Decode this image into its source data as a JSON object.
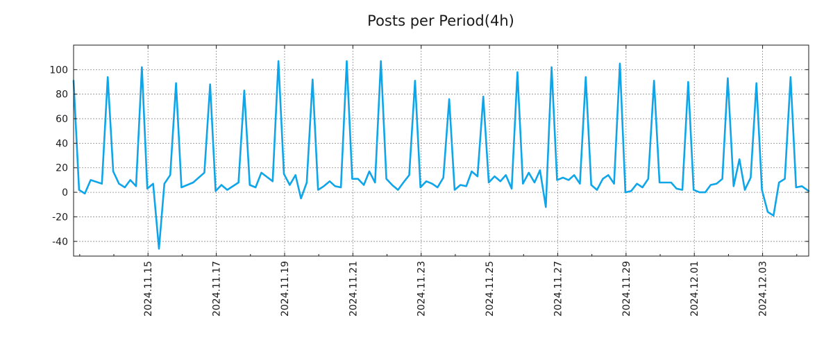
{
  "chart_data": {
    "type": "line",
    "title": "Posts per Period(4h)",
    "xlabel": "",
    "ylabel": "",
    "ylim": [
      -52,
      120
    ],
    "yticks": [
      -40,
      -20,
      0,
      20,
      40,
      60,
      80,
      100
    ],
    "xlim": [
      -0.23,
      21.3
    ],
    "x_ticks": [
      {
        "x": 1.95,
        "label": "2024.11.15"
      },
      {
        "x": 3.95,
        "label": "2024.11.17"
      },
      {
        "x": 5.95,
        "label": "2024.11.19"
      },
      {
        "x": 7.95,
        "label": "2024.11.21"
      },
      {
        "x": 9.95,
        "label": "2024.11.23"
      },
      {
        "x": 11.95,
        "label": "2024.11.25"
      },
      {
        "x": 13.95,
        "label": "2024.11.27"
      },
      {
        "x": 15.95,
        "label": "2024.11.29"
      },
      {
        "x": 17.95,
        "label": "2024.12.01"
      },
      {
        "x": 19.95,
        "label": "2024.12.03"
      }
    ],
    "grid": true,
    "color": "#0ea5e9",
    "series": [
      {
        "name": "Posts",
        "x": [
          -0.23,
          -0.07,
          0.1,
          0.27,
          0.6,
          0.77,
          0.93,
          1.1,
          1.27,
          1.43,
          1.6,
          1.77,
          1.93,
          2.1,
          2.27,
          2.43,
          2.6,
          2.77,
          2.93,
          3.27,
          3.6,
          3.77,
          3.93,
          4.1,
          4.27,
          4.6,
          4.77,
          4.93,
          5.1,
          5.27,
          5.6,
          5.77,
          5.93,
          6.1,
          6.27,
          6.43,
          6.6,
          6.77,
          6.93,
          7.1,
          7.27,
          7.43,
          7.6,
          7.77,
          7.93,
          8.1,
          8.27,
          8.43,
          8.6,
          8.77,
          8.93,
          9.1,
          9.27,
          9.43,
          9.6,
          9.77,
          9.93,
          10.1,
          10.27,
          10.43,
          10.6,
          10.77,
          10.93,
          11.1,
          11.27,
          11.43,
          11.6,
          11.77,
          11.93,
          12.1,
          12.27,
          12.43,
          12.6,
          12.77,
          12.93,
          13.1,
          13.27,
          13.43,
          13.6,
          13.77,
          13.93,
          14.1,
          14.27,
          14.43,
          14.6,
          14.77,
          14.93,
          15.1,
          15.27,
          15.43,
          15.6,
          15.77,
          15.93,
          16.1,
          16.27,
          16.43,
          16.6,
          16.77,
          16.93,
          17.1,
          17.27,
          17.43,
          17.6,
          17.77,
          17.93,
          18.1,
          18.27,
          18.43,
          18.6,
          18.77,
          18.93,
          19.1,
          19.27,
          19.43,
          19.6,
          19.77,
          19.93,
          20.1,
          20.27,
          20.43,
          20.6,
          20.77,
          20.93,
          21.1,
          21.3
        ],
        "y": [
          91,
          2,
          -1,
          10,
          7,
          94,
          17,
          7,
          4,
          10,
          5,
          102,
          3,
          7,
          -46,
          7,
          14,
          89,
          4,
          8,
          16,
          88,
          1,
          6,
          2,
          8,
          83,
          6,
          4,
          16,
          9,
          107,
          15,
          6,
          14,
          -5,
          8,
          92,
          2,
          5,
          9,
          5,
          4,
          107,
          11,
          11,
          6,
          17,
          8,
          107,
          11,
          6,
          2,
          8,
          14,
          91,
          4,
          9,
          7,
          4,
          12,
          76,
          2,
          6,
          5,
          17,
          13,
          78,
          8,
          13,
          9,
          14,
          3,
          98,
          7,
          16,
          8,
          18,
          -12,
          102,
          10,
          12,
          10,
          14,
          7,
          94,
          6,
          2,
          11,
          14,
          7,
          105,
          0,
          1,
          7,
          4,
          11,
          91,
          8,
          8,
          8,
          3,
          2,
          90,
          2,
          0,
          0,
          6,
          7,
          11,
          93,
          5,
          27,
          2,
          12,
          89,
          2,
          -16,
          -19,
          8,
          11,
          94,
          4,
          5,
          1
        ]
      }
    ]
  }
}
